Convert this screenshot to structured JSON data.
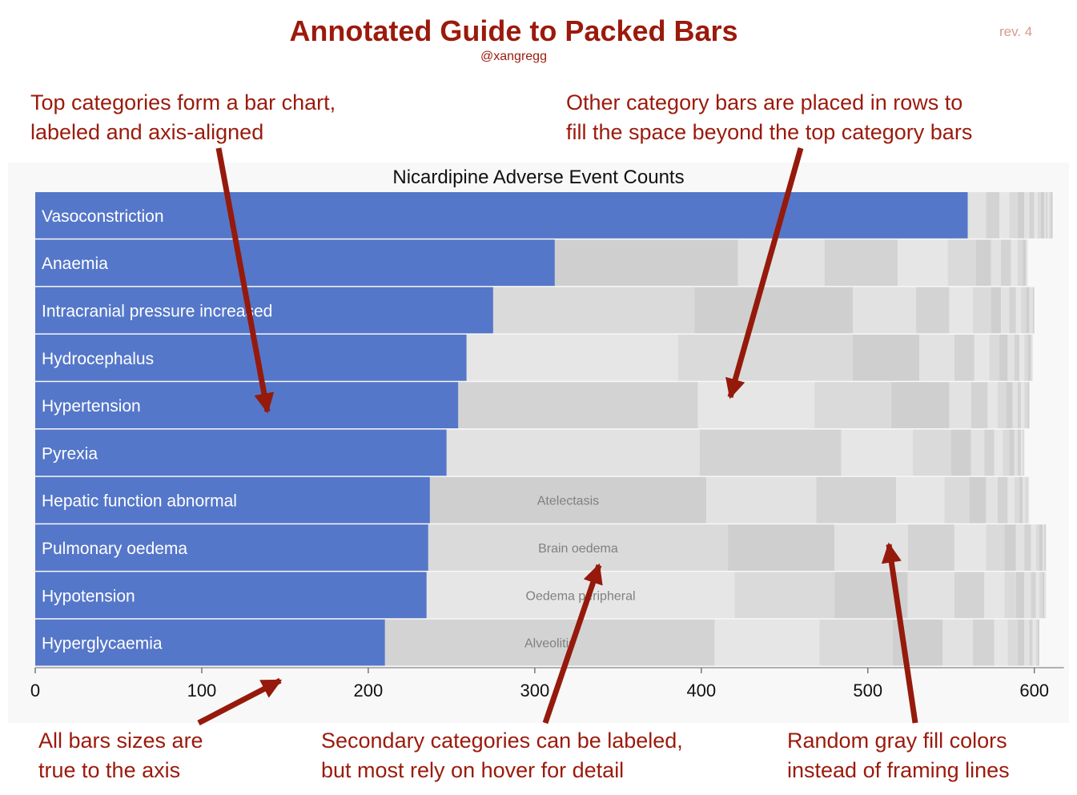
{
  "header": {
    "title": "Annotated Guide to Packed Bars",
    "handle": "@xangregg",
    "revision": "rev. 4"
  },
  "annotations": {
    "top_left": [
      "Top categories form a bar chart,",
      "labeled and axis-aligned"
    ],
    "top_right": [
      "Other category bars are placed in rows to",
      "fill the space beyond the top category bars"
    ],
    "bottom_left": [
      "All bars sizes are",
      "true to the axis"
    ],
    "bottom_center": [
      "Secondary categories can be labeled,",
      "but most rely on hover for detail"
    ],
    "bottom_right": [
      "Random gray fill colors",
      "instead of framing lines"
    ]
  },
  "colors": {
    "annotation": "#9b1a0c",
    "primary_bar": "#5577c9",
    "secondary_grays": [
      "#e2e2e2",
      "#dadada",
      "#d3d3d3",
      "#cfcfcf",
      "#e6e6e6"
    ]
  },
  "chart_data": {
    "type": "bar",
    "title": "Nicardipine Adverse Event Counts",
    "orientation": "horizontal",
    "xlim": [
      0,
      612
    ],
    "xticks": [
      "0",
      "100",
      "200",
      "300",
      "400",
      "500",
      "600"
    ],
    "categories": [
      "Vasoconstriction",
      "Anaemia",
      "Intracranial pressure increased",
      "Hydrocephalus",
      "Hypertension",
      "Pyrexia",
      "Hepatic function abnormal",
      "Pulmonary oedema",
      "Hypotension",
      "Hyperglycaemia"
    ],
    "values": [
      560,
      312,
      275,
      259,
      254,
      247,
      237,
      236,
      235,
      210
    ],
    "secondary_labels": [
      "",
      "",
      "",
      "",
      "",
      "",
      "Atelectasis",
      "Brain oedema",
      "Oedema peripheral",
      "Alveolitis"
    ],
    "secondary_rows": [
      [
        11,
        8,
        6,
        5,
        4,
        3,
        3,
        2,
        2,
        2,
        1,
        1,
        1,
        1,
        1
      ],
      [
        110,
        52,
        44,
        30,
        17,
        9,
        6,
        6,
        4,
        3,
        2,
        1
      ],
      [
        121,
        95,
        38,
        20,
        14,
        11,
        6,
        5,
        4,
        3,
        3,
        2,
        2,
        1
      ],
      [
        127,
        105,
        40,
        21,
        12,
        9,
        6,
        5,
        4,
        3,
        3,
        2,
        2,
        1
      ],
      [
        144,
        70,
        46,
        35,
        13,
        10,
        6,
        5,
        4,
        3,
        2,
        2,
        2,
        1
      ],
      [
        152,
        85,
        43,
        23,
        12,
        8,
        6,
        5,
        4,
        3,
        2,
        2,
        1,
        1
      ],
      [
        166,
        66,
        48,
        29,
        15,
        10,
        7,
        6,
        4,
        3,
        2,
        2,
        1,
        1
      ],
      [
        180,
        64,
        44,
        28,
        19,
        11,
        7,
        5,
        4,
        3,
        2,
        2,
        1,
        1
      ],
      [
        185,
        60,
        44,
        28,
        18,
        12,
        7,
        5,
        4,
        3,
        2,
        2,
        1,
        1
      ],
      [
        198,
        63,
        44,
        30,
        18,
        13,
        8,
        6,
        4,
        3,
        2,
        2,
        1,
        1
      ]
    ]
  }
}
